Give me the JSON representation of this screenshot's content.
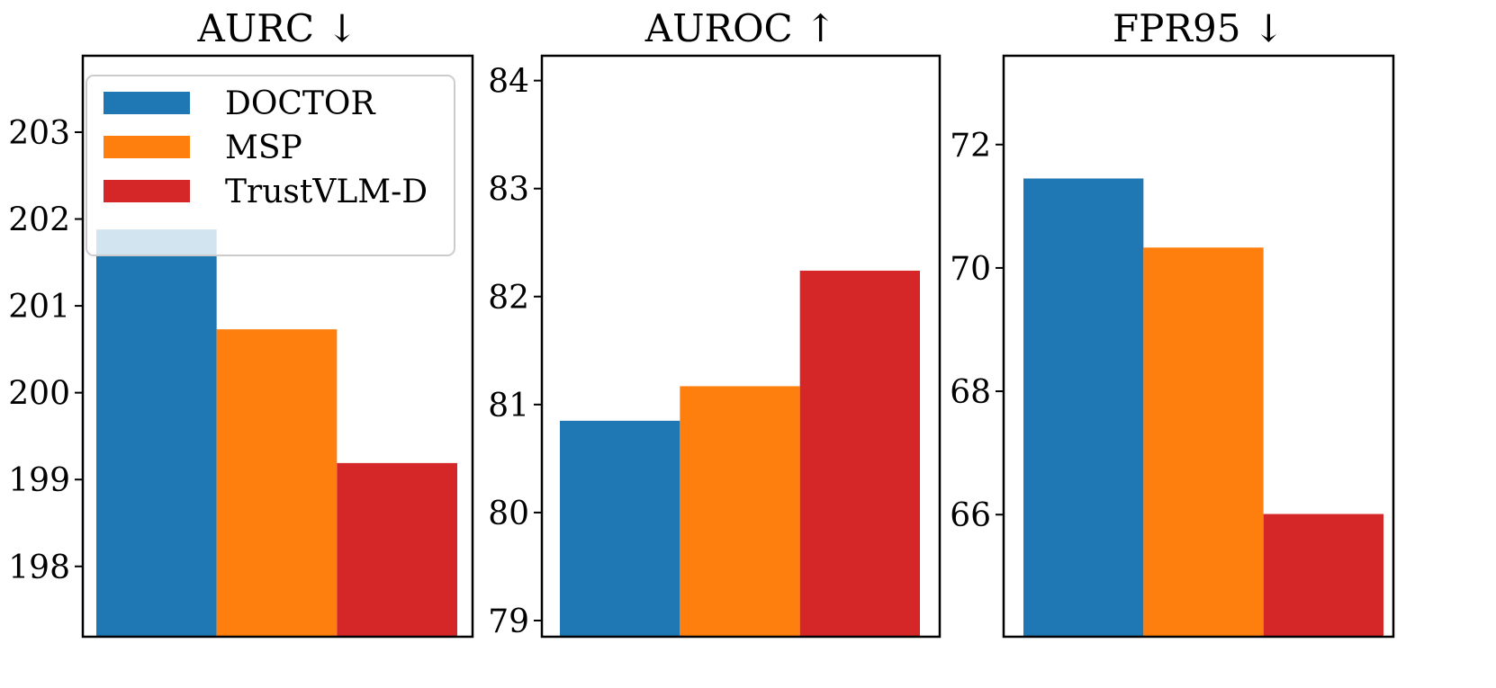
{
  "chart_data": [
    {
      "type": "bar",
      "title": "AURC ↓",
      "categories": [
        "DOCTOR",
        "MSP",
        "TrustVLM-D"
      ],
      "values": [
        201.88,
        200.73,
        199.19
      ],
      "ylim": [
        197.19,
        203.88
      ],
      "yticks": [
        198,
        199,
        200,
        201,
        202,
        203
      ],
      "xlabel": "",
      "ylabel": "",
      "grid": false,
      "legend": {
        "placement": "top-left",
        "entries": [
          "DOCTOR",
          "MSP",
          "TrustVLM-D"
        ]
      }
    },
    {
      "type": "bar",
      "title": "AUROC ↑",
      "categories": [
        "DOCTOR",
        "MSP",
        "TrustVLM-D"
      ],
      "values": [
        80.85,
        81.17,
        82.24
      ],
      "ylim": [
        78.85,
        84.23
      ],
      "yticks": [
        79,
        80,
        81,
        82,
        83,
        84
      ],
      "xlabel": "",
      "ylabel": "",
      "grid": false
    },
    {
      "type": "bar",
      "title": "FPR95 ↓",
      "categories": [
        "DOCTOR",
        "MSP",
        "TrustVLM-D"
      ],
      "values": [
        71.45,
        70.33,
        66.01
      ],
      "ylim": [
        64.02,
        73.44
      ],
      "yticks": [
        66,
        68,
        70,
        72
      ],
      "xlabel": "",
      "ylabel": "",
      "grid": false
    }
  ],
  "colors": [
    "#1f77b4",
    "#ff7f0e",
    "#d62728"
  ]
}
